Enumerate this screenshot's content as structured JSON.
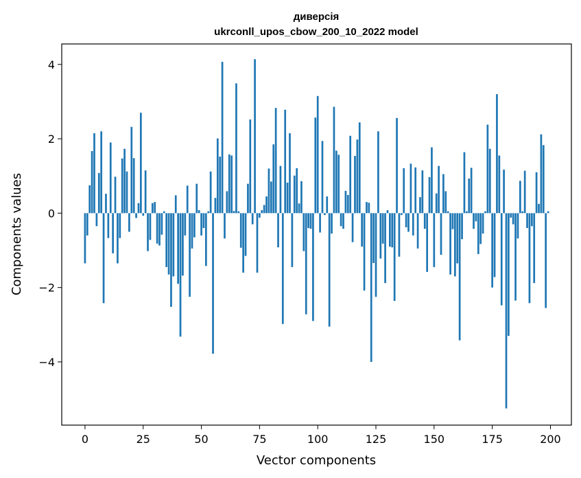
{
  "chart_data": {
    "type": "bar",
    "title_line1": "диверсія",
    "title_line2": "ukrconll_upos_cbow_200_10_2022 model",
    "xlabel": "Vector components",
    "ylabel": "Components values",
    "xlim": [
      -10,
      209
    ],
    "ylim": [
      -5.7,
      4.55
    ],
    "xticks": [
      0,
      25,
      50,
      75,
      100,
      125,
      150,
      175,
      200
    ],
    "xtick_labels": [
      "0",
      "25",
      "50",
      "75",
      "100",
      "125",
      "150",
      "175",
      "200"
    ],
    "yticks": [
      -4,
      -2,
      0,
      2,
      4
    ],
    "ytick_labels": [
      "−4",
      "−2",
      "0",
      "2",
      "4"
    ],
    "grid": false,
    "bar_color": "#1f77b4",
    "values": [
      -1.35,
      -0.6,
      0.75,
      1.67,
      2.15,
      -0.35,
      1.08,
      2.2,
      -2.42,
      0.52,
      -0.67,
      1.9,
      -1.08,
      0.98,
      -1.35,
      -0.67,
      1.47,
      1.73,
      1.12,
      -0.5,
      2.32,
      1.48,
      -0.13,
      0.27,
      2.7,
      -0.07,
      1.15,
      -1.02,
      -0.72,
      0.27,
      0.3,
      -0.82,
      -0.87,
      -0.58,
      0.05,
      -1.45,
      -1.65,
      -2.52,
      -1.7,
      0.48,
      -1.9,
      -3.32,
      -1.68,
      -0.6,
      0.74,
      -2.25,
      -0.95,
      -0.65,
      0.79,
      0.08,
      -0.6,
      -0.4,
      -1.42,
      0.05,
      1.12,
      -3.78,
      0.41,
      2.01,
      1.52,
      4.07,
      -0.68,
      0.59,
      1.58,
      1.55,
      0.06,
      3.49,
      0.05,
      -0.93,
      -1.6,
      -1.15,
      0.79,
      2.52,
      -0.3,
      4.14,
      -1.6,
      -0.12,
      0.08,
      0.22,
      0.45,
      1.2,
      0.85,
      1.85,
      2.83,
      -0.92,
      1.27,
      -2.98,
      2.78,
      0.82,
      2.15,
      -1.45,
      1.01,
      1.21,
      0.26,
      0.86,
      -1.02,
      -2.72,
      -0.4,
      -0.42,
      -2.9,
      2.57,
      3.15,
      -0.52,
      1.94,
      -0.05,
      0.45,
      -3.05,
      -0.55,
      2.86,
      1.68,
      1.57,
      -0.35,
      -0.42,
      0.6,
      0.49,
      2.08,
      -0.78,
      1.54,
      1.98,
      2.44,
      -0.9,
      -2.08,
      0.3,
      0.28,
      -4.0,
      -1.34,
      -2.25,
      2.2,
      -1.22,
      -0.82,
      -1.88,
      0.08,
      -0.9,
      -0.92,
      -2.36,
      2.56,
      -1.17,
      -0.05,
      1.21,
      -0.38,
      -0.5,
      1.33,
      -0.6,
      1.23,
      -0.95,
      0.43,
      1.15,
      -0.42,
      -1.58,
      0.97,
      1.77,
      -1.45,
      0.53,
      1.27,
      -1.12,
      1.05,
      0.59,
      0.05,
      -1.65,
      -0.43,
      -1.7,
      -1.35,
      -3.42,
      -0.7,
      1.64,
      0.05,
      0.93,
      1.22,
      -0.42,
      -0.22,
      -1.1,
      -0.83,
      -0.55,
      0.05,
      2.38,
      1.73,
      -2.0,
      -1.72,
      3.2,
      1.55,
      -2.48,
      1.17,
      -5.25,
      -3.3,
      -0.12,
      -0.3,
      -2.35,
      -0.68,
      0.87,
      0.05,
      1.14,
      -0.4,
      -2.42,
      -0.35,
      -1.88,
      1.1,
      0.25,
      2.12,
      1.83,
      -2.55,
      0.05
    ]
  }
}
